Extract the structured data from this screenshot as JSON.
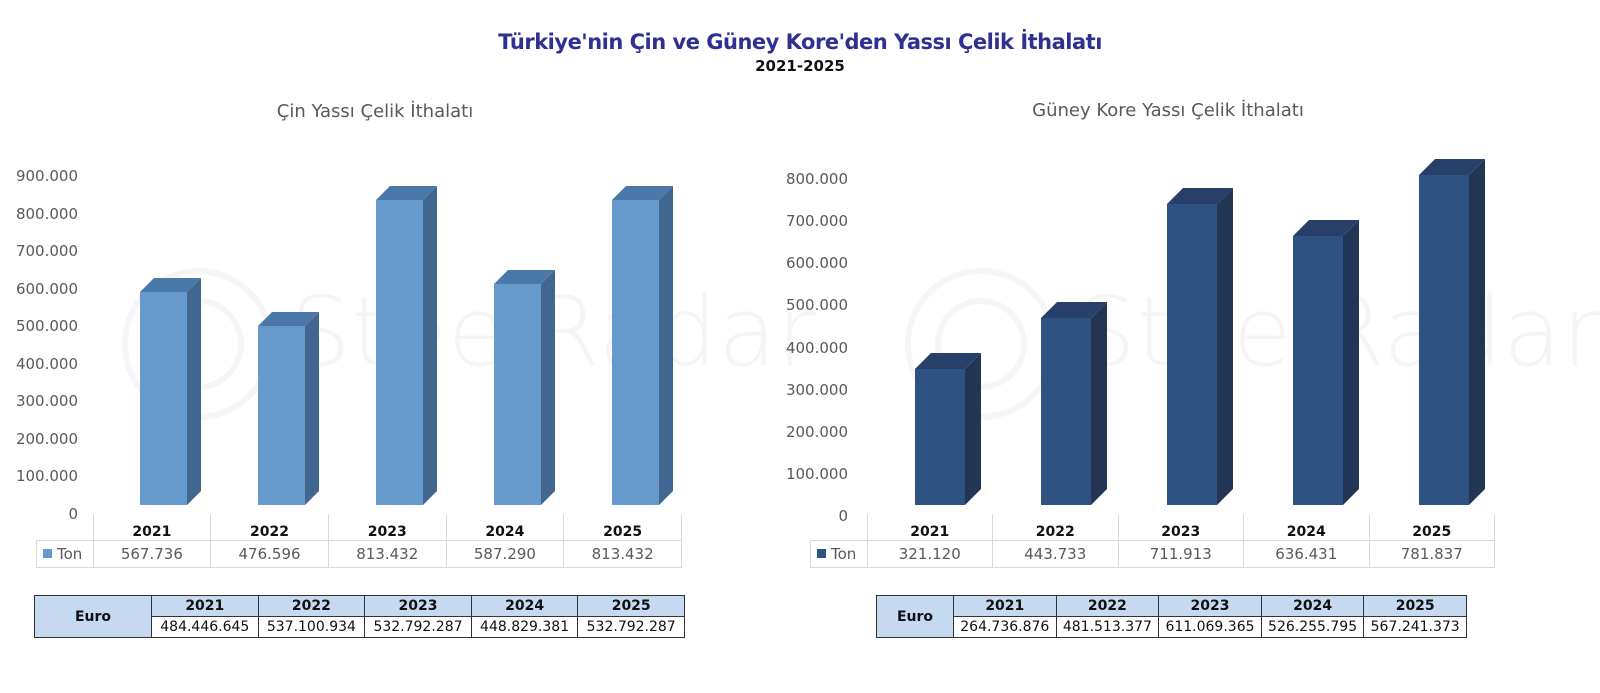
{
  "header": {
    "title": "Türkiye'nin Çin ve Güney Kore'den Yassı Çelik İthalatı",
    "subtitle": "2021-2025"
  },
  "watermark": "SteelRadar",
  "colors": {
    "title": "#2e3191",
    "china_bar_front": "#6699cc",
    "china_bar_side": "#41668f",
    "china_bar_top": "#4a78a8",
    "korea_bar_front": "#2e5282",
    "korea_bar_side": "#233554",
    "korea_bar_top": "#27406a",
    "table_header_bg": "#c5d9f1"
  },
  "charts": [
    {
      "id": "china",
      "title": "Çin Yassı Çelik İthalatı",
      "y_ticks": [
        "900.000",
        "800.000",
        "700.000",
        "600.000",
        "500.000",
        "400.000",
        "300.000",
        "200.000",
        "100.000",
        "0"
      ],
      "legend": "Ton",
      "years": [
        "2021",
        "2022",
        "2023",
        "2024",
        "2025"
      ],
      "ton_labels": [
        "567.736",
        "476.596",
        "813.432",
        "587.290",
        "813.432"
      ],
      "euro_label": "Euro",
      "euro_values": [
        "484.446.645",
        "537.100.934",
        "532.792.287",
        "448.829.381",
        "532.792.287"
      ]
    },
    {
      "id": "korea",
      "title": "Güney Kore Yassı Çelik İthalatı",
      "y_ticks": [
        "800.000",
        "700.000",
        "600.000",
        "500.000",
        "400.000",
        "300.000",
        "200.000",
        "100.000",
        "0"
      ],
      "legend": "Ton",
      "years": [
        "2021",
        "2022",
        "2023",
        "2024",
        "2025"
      ],
      "ton_labels": [
        "321.120",
        "443.733",
        "711.913",
        "636.431",
        "781.837"
      ],
      "euro_label": "Euro",
      "euro_values": [
        "264.736.876",
        "481.513.377",
        "611.069.365",
        "526.255.795",
        "567.241.373"
      ]
    }
  ],
  "chart_data": [
    {
      "type": "bar",
      "title": "Çin Yassı Çelik İthalatı",
      "categories": [
        "2021",
        "2022",
        "2023",
        "2024",
        "2025"
      ],
      "series": [
        {
          "name": "Ton",
          "values": [
            567736,
            476596,
            813432,
            587290,
            813432
          ]
        }
      ],
      "table_series": [
        {
          "name": "Euro",
          "values": [
            484446645,
            537100934,
            532792287,
            448829381,
            532792287
          ]
        }
      ],
      "xlabel": "",
      "ylabel": "",
      "ylim": [
        0,
        900000
      ],
      "grid": false,
      "legend_position": "data-table",
      "style": "3d-column"
    },
    {
      "type": "bar",
      "title": "Güney Kore Yassı Çelik İthalatı",
      "categories": [
        "2021",
        "2022",
        "2023",
        "2024",
        "2025"
      ],
      "series": [
        {
          "name": "Ton",
          "values": [
            321120,
            443733,
            711913,
            636431,
            781837
          ]
        }
      ],
      "table_series": [
        {
          "name": "Euro",
          "values": [
            264736876,
            481513377,
            611069365,
            526255795,
            567241373
          ]
        }
      ],
      "xlabel": "",
      "ylabel": "",
      "ylim": [
        0,
        800000
      ],
      "grid": false,
      "legend_position": "data-table",
      "style": "3d-column"
    }
  ]
}
